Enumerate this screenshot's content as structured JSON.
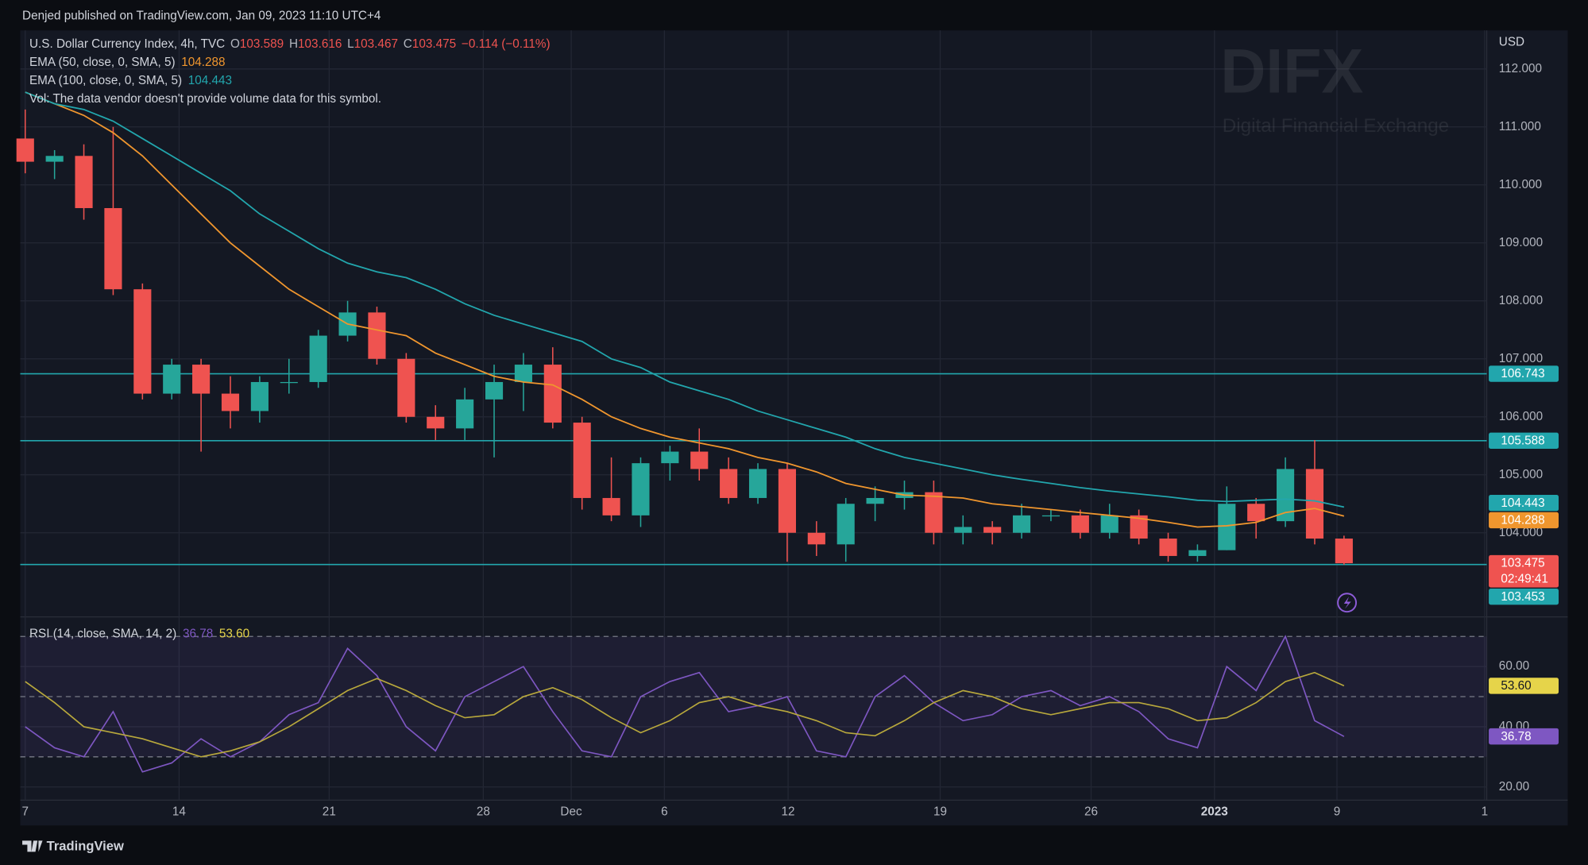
{
  "header": {
    "published": "Denjed published on TradingView.com, Jan 09, 2023 11:10 UTC+4",
    "symbol": "U.S. Dollar Currency Index, 4h, TVC",
    "ohlc": [
      {
        "key": "O",
        "value": 103.589
      },
      {
        "key": "H",
        "value": 103.616
      },
      {
        "key": "L",
        "value": 103.467
      },
      {
        "key": "C",
        "value": 103.475
      }
    ],
    "change": "−0.114 (−0.11%)",
    "volume_note": "Vol: The data vendor doesn't provide volume data for this symbol.",
    "currency": "USD",
    "countdown": "02:49:41",
    "watermark": "DIFX",
    "watermark_sub": "Digital Financial Exchange",
    "footer": "TradingView"
  },
  "chart_data": [
    {
      "type": "candlestick",
      "candles": {
        "open": [
          110.8,
          110.4,
          110.5,
          109.6,
          108.2,
          106.4,
          106.9,
          106.4,
          106.1,
          106.6,
          106.6,
          107.4,
          107.8,
          107.0,
          106.0,
          105.8,
          106.3,
          106.6,
          106.9,
          105.9,
          104.6,
          104.3,
          105.2,
          105.4,
          105.1,
          104.6,
          105.1,
          104.0,
          103.8,
          104.5,
          104.6,
          104.7,
          104.0,
          104.1,
          104.0,
          104.3,
          104.3,
          104.0,
          104.3,
          103.9,
          103.6,
          103.7,
          104.5,
          104.2,
          105.1,
          103.9
        ],
        "high": [
          111.3,
          110.6,
          110.7,
          111.0,
          108.3,
          107.0,
          107.0,
          106.7,
          106.7,
          107.0,
          107.5,
          108.0,
          107.9,
          107.1,
          106.2,
          106.5,
          106.9,
          107.1,
          107.2,
          106.0,
          105.3,
          105.3,
          105.5,
          105.8,
          105.3,
          105.2,
          105.2,
          104.2,
          104.6,
          104.8,
          104.9,
          104.9,
          104.3,
          104.2,
          104.5,
          104.4,
          104.4,
          104.5,
          104.4,
          104.0,
          103.8,
          104.8,
          104.6,
          105.3,
          105.6,
          103.95
        ],
        "low": [
          110.2,
          110.1,
          109.4,
          108.1,
          106.3,
          106.3,
          105.4,
          105.8,
          105.9,
          106.4,
          106.5,
          107.3,
          106.9,
          105.9,
          105.6,
          105.6,
          105.3,
          106.1,
          105.8,
          104.4,
          104.2,
          104.1,
          104.9,
          104.9,
          104.5,
          104.5,
          103.5,
          103.6,
          103.5,
          104.2,
          104.4,
          103.8,
          103.8,
          103.8,
          103.9,
          104.2,
          103.9,
          103.9,
          103.8,
          103.5,
          103.5,
          103.7,
          103.9,
          104.1,
          103.8,
          103.45
        ],
        "close": [
          110.4,
          110.5,
          109.6,
          108.2,
          106.4,
          106.9,
          106.4,
          106.1,
          106.6,
          106.6,
          107.4,
          107.8,
          107.0,
          106.0,
          105.8,
          106.3,
          106.6,
          106.9,
          105.9,
          104.6,
          104.3,
          105.2,
          105.4,
          105.1,
          104.6,
          105.1,
          104.0,
          103.8,
          104.5,
          104.6,
          104.7,
          104.0,
          104.1,
          104.0,
          104.3,
          104.3,
          104.0,
          104.3,
          103.9,
          103.6,
          103.7,
          104.5,
          104.2,
          105.1,
          103.9,
          103.475
        ],
        "up_color": "#26a69a",
        "down_color": "#ef5350"
      },
      "series": [
        {
          "name": "EMA (50, close, 0, SMA, 5)",
          "color": "#f0962e",
          "values": [
            111.6,
            111.4,
            111.2,
            110.9,
            110.5,
            110.0,
            109.5,
            109.0,
            108.6,
            108.2,
            107.9,
            107.6,
            107.5,
            107.4,
            107.1,
            106.9,
            106.7,
            106.6,
            106.55,
            106.3,
            106.0,
            105.8,
            105.65,
            105.55,
            105.45,
            105.3,
            105.2,
            105.05,
            104.85,
            104.75,
            104.65,
            104.63,
            104.6,
            104.5,
            104.45,
            104.4,
            104.35,
            104.3,
            104.25,
            104.18,
            104.1,
            104.12,
            104.18,
            104.35,
            104.42,
            104.288
          ]
        },
        {
          "name": "EMA (100, close, 0, SMA, 5)",
          "color": "#22a6ad",
          "values": [
            111.6,
            111.4,
            111.3,
            111.1,
            110.8,
            110.5,
            110.2,
            109.9,
            109.5,
            109.2,
            108.9,
            108.65,
            108.5,
            108.4,
            108.2,
            107.95,
            107.75,
            107.6,
            107.45,
            107.3,
            107.0,
            106.85,
            106.6,
            106.45,
            106.3,
            106.1,
            105.95,
            105.8,
            105.65,
            105.45,
            105.3,
            105.2,
            105.1,
            105.0,
            104.92,
            104.85,
            104.78,
            104.72,
            104.67,
            104.62,
            104.56,
            104.54,
            104.56,
            104.58,
            104.55,
            104.443
          ]
        }
      ],
      "levels": [
        106.743,
        105.588,
        103.453
      ],
      "level_color": "#22a6ad",
      "xlim": [
        -0.17,
        49.87
      ],
      "xticks": [
        {
          "value": 0,
          "label": "7"
        },
        {
          "value": 5.25,
          "label": "14"
        },
        {
          "value": 10.37,
          "label": "21"
        },
        {
          "value": 15.63,
          "label": "28"
        },
        {
          "value": 18.63,
          "label": "Dec"
        },
        {
          "value": 21.81,
          "label": "6"
        },
        {
          "value": 26.03,
          "label": "12"
        },
        {
          "value": 31.22,
          "label": "19"
        },
        {
          "value": 36.37,
          "label": "26"
        },
        {
          "value": 40.58,
          "label": "2023"
        },
        {
          "value": 44.76,
          "label": "9"
        },
        {
          "value": 49.8,
          "label": "1"
        }
      ],
      "ylim": [
        102.585,
        112.7
      ],
      "yticks": [
        {
          "value": 104,
          "label": "104.000"
        },
        {
          "value": 105,
          "label": "105.000"
        },
        {
          "value": 106,
          "label": "106.000"
        },
        {
          "value": 107,
          "label": "107.000"
        },
        {
          "value": 108,
          "label": "108.000"
        },
        {
          "value": 109,
          "label": "109.000"
        },
        {
          "value": 110,
          "label": "110.000"
        },
        {
          "value": 111,
          "label": "111.000"
        },
        {
          "value": 112,
          "label": "112.000"
        }
      ],
      "grid": true
    },
    {
      "type": "line",
      "title": "RSI (14, close, SMA, 14, 2)",
      "series": [
        {
          "color": "#7e57c2",
          "values": [
            40,
            33,
            30,
            45,
            25,
            28,
            36,
            30,
            35,
            44,
            48,
            66,
            57,
            40,
            32,
            50,
            55,
            60,
            45,
            32,
            30,
            50,
            55,
            58,
            45,
            47,
            50,
            32,
            30,
            50,
            57,
            48,
            42,
            44,
            50,
            52,
            47,
            50,
            45,
            36,
            33,
            60,
            52,
            70,
            42,
            36.78
          ]
        },
        {
          "color": "#b8a83c",
          "last_label": "53.60",
          "values": [
            55,
            48,
            40,
            38,
            36,
            33,
            30,
            32,
            35,
            40,
            46,
            52,
            56,
            52,
            47,
            43,
            44,
            50,
            53,
            49,
            43,
            38,
            42,
            48,
            50,
            47,
            45,
            42,
            38,
            37,
            42,
            48,
            52,
            50,
            46,
            44,
            46,
            48,
            48,
            46,
            42,
            43,
            48,
            55,
            58,
            53.6
          ]
        }
      ],
      "levels": [
        70,
        50,
        30
      ],
      "ylim": [
        15.6,
        75.5
      ],
      "yticks": [
        {
          "value": 20,
          "label": "20.00"
        },
        {
          "value": 40,
          "label": "40.00"
        },
        {
          "value": 60,
          "label": "60.00"
        }
      ],
      "grid": true
    }
  ]
}
